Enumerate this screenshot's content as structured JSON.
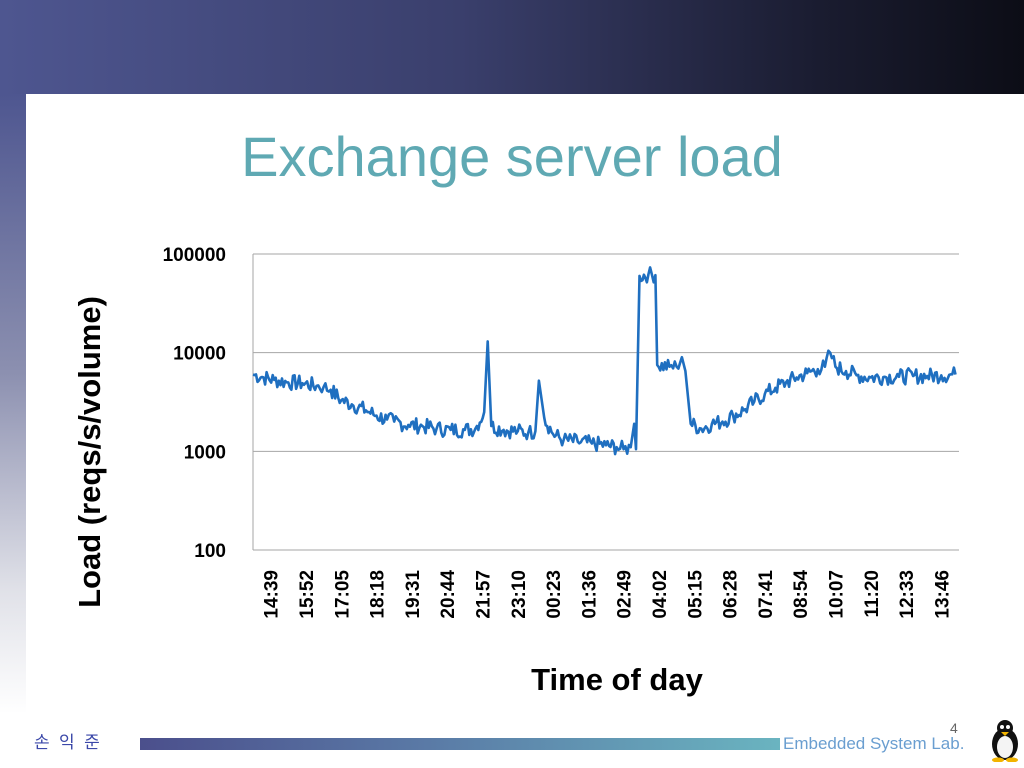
{
  "slide": {
    "title": "Exchange server load",
    "footer_author": "손 익 준",
    "footer_lab": "Embedded System Lab.",
    "page_number": "4"
  },
  "colors": {
    "title": "#5fa9b3",
    "series": "#1f6fc0",
    "grid": "#a6a6a6"
  },
  "chart_data": {
    "type": "line",
    "title": "",
    "xlabel": "Time of day",
    "ylabel": "Load (reqs/s/volume)",
    "y_scale": "log",
    "ylim": [
      100,
      100000
    ],
    "y_ticks": [
      100,
      1000,
      10000,
      100000
    ],
    "y_tick_labels": [
      "100",
      "1000",
      "10000",
      "100000"
    ],
    "x_tick_labels": [
      "14:39",
      "15:52",
      "17:05",
      "18:18",
      "19:31",
      "20:44",
      "21:57",
      "23:10",
      "00:23",
      "01:36",
      "02:49",
      "04:02",
      "05:15",
      "06:28",
      "07:41",
      "08:54",
      "10:07",
      "11:20",
      "12:33",
      "13:46"
    ],
    "grid": true,
    "legend": "none",
    "series": [
      {
        "values": [
          [
            0,
            6000
          ],
          [
            0.3,
            5600
          ],
          [
            0.6,
            5300
          ],
          [
            1.0,
            5000
          ],
          [
            1.4,
            4900
          ],
          [
            1.8,
            4600
          ],
          [
            2.0,
            4500
          ],
          [
            2.2,
            4200
          ],
          [
            2.5,
            3300
          ],
          [
            2.8,
            3000
          ],
          [
            3.2,
            2600
          ],
          [
            3.5,
            2300
          ],
          [
            3.8,
            2100
          ],
          [
            4.0,
            2000
          ],
          [
            4.4,
            1850
          ],
          [
            4.8,
            1800
          ],
          [
            5.2,
            1700
          ],
          [
            5.6,
            1650
          ],
          [
            6.0,
            1650
          ],
          [
            6.3,
            1700
          ],
          [
            6.55,
            2500
          ],
          [
            6.65,
            13000
          ],
          [
            6.75,
            1800
          ],
          [
            7.1,
            1650
          ],
          [
            7.5,
            1600
          ],
          [
            7.8,
            1550
          ],
          [
            8.0,
            1600
          ],
          [
            8.1,
            5200
          ],
          [
            8.25,
            2200
          ],
          [
            8.5,
            1500
          ],
          [
            8.8,
            1300
          ],
          [
            9.2,
            1250
          ],
          [
            9.6,
            1200
          ],
          [
            10.0,
            1150
          ],
          [
            10.3,
            1100
          ],
          [
            10.5,
            1050
          ],
          [
            10.7,
            1100
          ],
          [
            10.8,
            1900
          ],
          [
            10.85,
            1050
          ],
          [
            10.95,
            60000
          ],
          [
            11.2,
            62000
          ],
          [
            11.4,
            61000
          ],
          [
            11.45,
            7500
          ],
          [
            11.8,
            7200
          ],
          [
            12.0,
            7200
          ],
          [
            12.15,
            9000
          ],
          [
            12.25,
            6500
          ],
          [
            12.4,
            1900
          ],
          [
            12.7,
            1700
          ],
          [
            13.0,
            1900
          ],
          [
            13.3,
            2000
          ],
          [
            13.6,
            2300
          ],
          [
            13.9,
            2600
          ],
          [
            14.2,
            3200
          ],
          [
            14.5,
            3800
          ],
          [
            14.8,
            4400
          ],
          [
            15.1,
            5000
          ],
          [
            15.4,
            5600
          ],
          [
            15.7,
            6200
          ],
          [
            16.0,
            6800
          ],
          [
            16.2,
            7200
          ],
          [
            16.35,
            10000
          ],
          [
            16.5,
            7200
          ],
          [
            16.8,
            6500
          ],
          [
            17.1,
            5900
          ],
          [
            17.5,
            5600
          ],
          [
            17.9,
            5700
          ],
          [
            18.3,
            5700
          ],
          [
            18.7,
            5800
          ],
          [
            19.1,
            5800
          ],
          [
            19.5,
            5900
          ],
          [
            19.9,
            6000
          ]
        ]
      }
    ]
  }
}
